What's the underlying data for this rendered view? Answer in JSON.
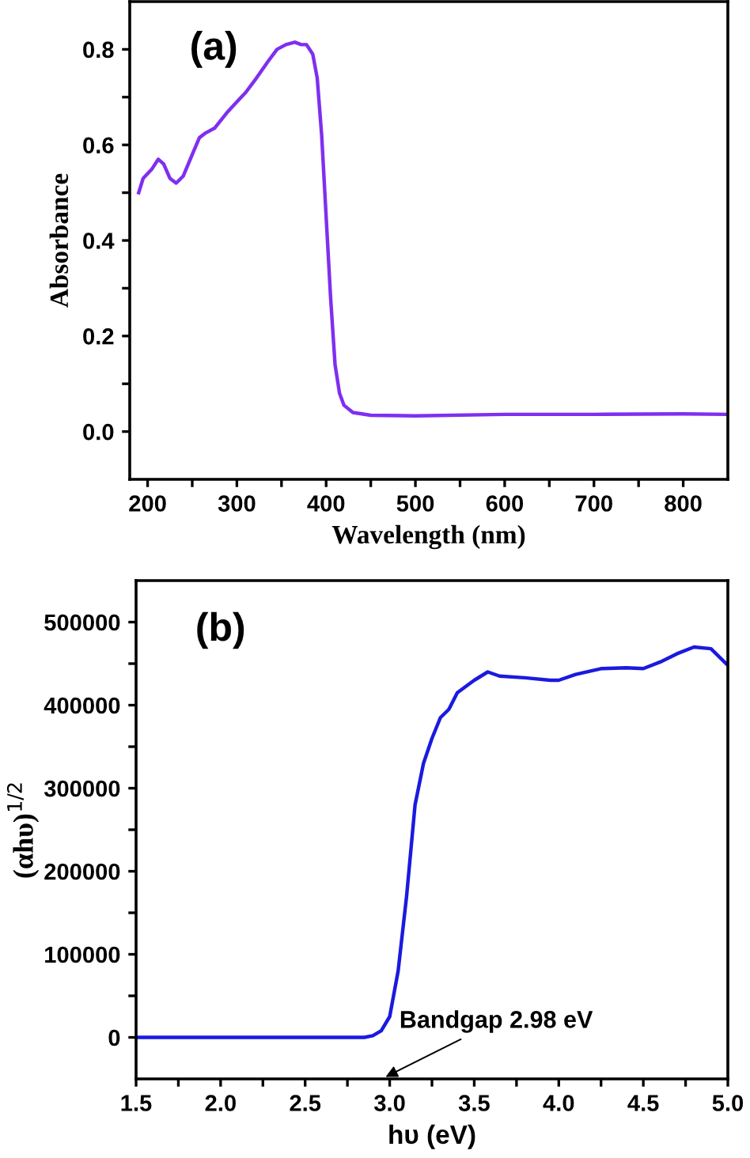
{
  "chart_data": [
    {
      "type": "line",
      "xlabel": "Wavelength (nm)",
      "ylabel": "Absorbance",
      "annotations": [
        "(a)"
      ],
      "x": [
        190,
        195,
        200,
        205,
        212,
        218,
        225,
        232,
        240,
        250,
        258,
        265,
        275,
        290,
        300,
        310,
        320,
        335,
        345,
        355,
        365,
        372,
        378,
        385,
        390,
        395,
        400,
        405,
        410,
        415,
        420,
        430,
        450,
        500,
        600,
        700,
        800,
        850
      ],
      "series": [
        {
          "color": "#7f2ff0",
          "values": [
            0.5,
            0.53,
            0.54,
            0.55,
            0.57,
            0.56,
            0.53,
            0.52,
            0.535,
            0.58,
            0.615,
            0.625,
            0.635,
            0.67,
            0.69,
            0.71,
            0.735,
            0.775,
            0.8,
            0.81,
            0.815,
            0.81,
            0.81,
            0.79,
            0.74,
            0.62,
            0.45,
            0.28,
            0.14,
            0.08,
            0.055,
            0.04,
            0.034,
            0.033,
            0.036,
            0.036,
            0.037,
            0.036
          ]
        }
      ],
      "xlim": [
        180,
        850
      ],
      "ylim": [
        -0.1,
        0.9
      ],
      "xticks": [
        200,
        {
          "value": 250,
          "label": null
        },
        300,
        {
          "value": 350,
          "label": null
        },
        400,
        {
          "value": 450,
          "label": null
        },
        500,
        {
          "value": 550,
          "label": null
        },
        600,
        {
          "value": 650,
          "label": null
        },
        700,
        {
          "value": 750,
          "label": null
        },
        800
      ],
      "yticks": [
        {
          "value": 0,
          "label": "0.0"
        },
        {
          "value": 0.1,
          "label": null
        },
        0.2,
        {
          "value": 0.3,
          "label": null
        },
        0.4,
        {
          "value": 0.5,
          "label": null
        },
        0.6,
        {
          "value": 0.7,
          "label": null
        },
        0.8
      ],
      "grid": false,
      "legend": false,
      "marker": "none",
      "line_style": "solid"
    },
    {
      "type": "line",
      "xlabel": "hυ (eV)",
      "ylabel": "(αhυ)$^{1/2}$",
      "annotations": [
        "(b)",
        "Bandgap 2.98 eV"
      ],
      "x": [
        1.5,
        2.0,
        2.5,
        2.85,
        2.9,
        2.95,
        3.0,
        3.05,
        3.1,
        3.15,
        3.2,
        3.25,
        3.3,
        3.35,
        3.4,
        3.5,
        3.58,
        3.65,
        3.8,
        3.95,
        4.0,
        4.1,
        4.25,
        4.4,
        4.5,
        4.6,
        4.7,
        4.8,
        4.9,
        5.0
      ],
      "series": [
        {
          "color": "#1a1adf",
          "values": [
            0,
            0,
            0,
            0,
            2000,
            8000,
            25000,
            80000,
            170000,
            280000,
            330000,
            360000,
            385000,
            395000,
            415000,
            430000,
            440000,
            435000,
            433000,
            430000,
            430000,
            437000,
            444000,
            445000,
            444000,
            452000,
            462000,
            470000,
            468000,
            448000
          ]
        }
      ],
      "xlim": [
        1.5,
        5.0
      ],
      "ylim": [
        -50000,
        550000
      ],
      "xticks": [
        {
          "value": 1.5,
          "label": "1.5"
        },
        {
          "value": 1.75,
          "label": null
        },
        {
          "value": 2.0,
          "label": "2.0"
        },
        {
          "value": 2.25,
          "label": null
        },
        {
          "value": 2.5,
          "label": "2.5"
        },
        {
          "value": 2.75,
          "label": null
        },
        {
          "value": 3.0,
          "label": "3.0"
        },
        {
          "value": 3.25,
          "label": null
        },
        {
          "value": 3.5,
          "label": "3.5"
        },
        {
          "value": 3.75,
          "label": null
        },
        {
          "value": 4.0,
          "label": "4.0"
        },
        {
          "value": 4.25,
          "label": null
        },
        {
          "value": 4.5,
          "label": "4.5"
        },
        {
          "value": 4.75,
          "label": null
        },
        {
          "value": 5.0,
          "label": "5.0"
        }
      ],
      "yticks": [
        0,
        {
          "value": 50000,
          "label": null
        },
        100000,
        {
          "value": 150000,
          "label": null
        },
        200000,
        {
          "value": 250000,
          "label": null
        },
        300000,
        {
          "value": 350000,
          "label": null
        },
        400000,
        {
          "value": 450000,
          "label": null
        },
        500000
      ],
      "grid": false,
      "legend": false,
      "marker": "none",
      "line_style": "solid"
    }
  ]
}
